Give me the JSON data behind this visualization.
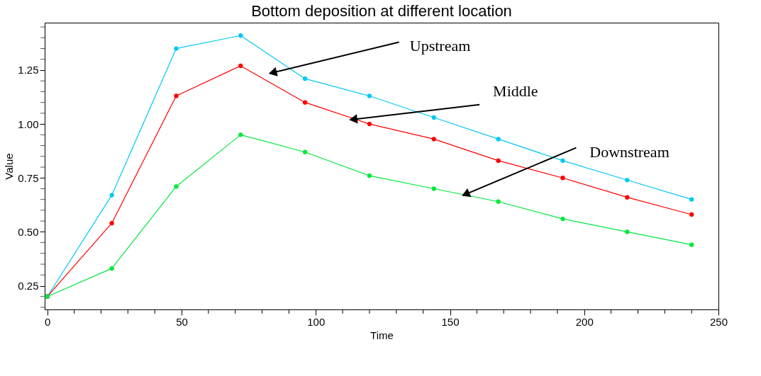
{
  "chart_data": {
    "type": "line",
    "title": "Bottom deposition at different location",
    "xlabel": "Time",
    "ylabel": "Value",
    "x": [
      0,
      24,
      48,
      72,
      96,
      120,
      144,
      168,
      192,
      216,
      240
    ],
    "series": [
      {
        "color": "#00c8f5",
        "values": [
          0.2,
          0.67,
          1.35,
          1.41,
          1.21,
          1.13,
          1.03,
          0.93,
          0.83,
          0.74,
          0.65
        ]
      },
      {
        "color": "#ff0000",
        "values": [
          0.2,
          0.54,
          1.13,
          1.27,
          1.1,
          1.0,
          0.93,
          0.83,
          0.75,
          0.66,
          0.58
        ]
      },
      {
        "color": "#00e83c",
        "values": [
          0.2,
          0.33,
          0.71,
          0.95,
          0.87,
          0.76,
          0.7,
          0.64,
          0.56,
          0.5,
          0.44
        ]
      }
    ],
    "xlim": [
      -1,
      250
    ],
    "ylim": [
      0.14,
      1.47
    ],
    "xticks": [
      0,
      {
        "value": 10,
        "label": null
      },
      {
        "value": 20,
        "label": null
      },
      {
        "value": 30,
        "label": null
      },
      {
        "value": 40,
        "label": null
      },
      50,
      {
        "value": 60,
        "label": null
      },
      {
        "value": 70,
        "label": null
      },
      {
        "value": 80,
        "label": null
      },
      {
        "value": 90,
        "label": null
      },
      100,
      {
        "value": 110,
        "label": null
      },
      {
        "value": 120,
        "label": null
      },
      {
        "value": 130,
        "label": null
      },
      {
        "value": 140,
        "label": null
      },
      150,
      {
        "value": 160,
        "label": null
      },
      {
        "value": 170,
        "label": null
      },
      {
        "value": 180,
        "label": null
      },
      {
        "value": 190,
        "label": null
      },
      200,
      {
        "value": 210,
        "label": null
      },
      {
        "value": 220,
        "label": null
      },
      {
        "value": 230,
        "label": null
      },
      {
        "value": 240,
        "label": null
      },
      250
    ],
    "yticks": [
      {
        "value": 0.15,
        "label": null
      },
      {
        "value": 0.2,
        "label": null
      },
      {
        "value": 0.25,
        "label": "0.25"
      },
      {
        "value": 0.3,
        "label": null
      },
      {
        "value": 0.35,
        "label": null
      },
      {
        "value": 0.4,
        "label": null
      },
      {
        "value": 0.45,
        "label": null
      },
      {
        "value": 0.5,
        "label": "0.50"
      },
      {
        "value": 0.55,
        "label": null
      },
      {
        "value": 0.6,
        "label": null
      },
      {
        "value": 0.65,
        "label": null
      },
      {
        "value": 0.7,
        "label": null
      },
      {
        "value": 0.75,
        "label": "0.75"
      },
      {
        "value": 0.8,
        "label": null
      },
      {
        "value": 0.85,
        "label": null
      },
      {
        "value": 0.9,
        "label": null
      },
      {
        "value": 0.95,
        "label": null
      },
      {
        "value": 1.0,
        "label": "1.00"
      },
      {
        "value": 1.05,
        "label": null
      },
      {
        "value": 1.1,
        "label": null
      },
      {
        "value": 1.15,
        "label": null
      },
      {
        "value": 1.2,
        "label": null
      },
      {
        "value": 1.25,
        "label": "1.25"
      },
      {
        "value": 1.3,
        "label": null
      },
      {
        "value": 1.35,
        "label": null
      },
      {
        "value": 1.4,
        "label": null
      },
      {
        "value": 1.45,
        "label": null
      }
    ],
    "annotations": [
      "Upstream",
      {
        "text": "Middle",
        "x": 113,
        "y": 1.02
      },
      {
        "text": "Downstream",
        "x": 155,
        "y": 0.67
      }
    ],
    "grid": false,
    "legend": false,
    "marker": "circle",
    "line_style": "solid"
  }
}
